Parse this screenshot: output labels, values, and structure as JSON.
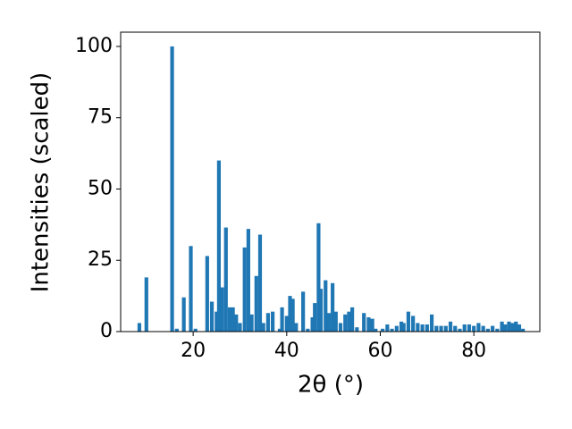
{
  "chart_data": {
    "type": "bar",
    "xlabel": "2θ (°)",
    "ylabel": "Intensities (scaled)",
    "color": "#1f77b4",
    "x": [
      8.5,
      10,
      15.5,
      16.5,
      18,
      19.5,
      20.5,
      23,
      24,
      25,
      25.5,
      26.2,
      27,
      27.8,
      28.5,
      29.2,
      30,
      31,
      31.8,
      32.5,
      33.5,
      34.3,
      35,
      36,
      37,
      38.5,
      39,
      40,
      40.7,
      41.3,
      42,
      43.5,
      44.5,
      45.5,
      46,
      46.8,
      47.3,
      48.3,
      49,
      49.8,
      50.5,
      51.5,
      52.5,
      53.3,
      54,
      55,
      56.5,
      57.5,
      58.3,
      59,
      60.5,
      61.5,
      62.5,
      63.5,
      64.5,
      65,
      66,
      67,
      68,
      69,
      70,
      71,
      72,
      73,
      74,
      75,
      76,
      77,
      78,
      79,
      80,
      81,
      82,
      83,
      84,
      85,
      86,
      86.7,
      87.5,
      88.3,
      89,
      89.7,
      90.5
    ],
    "values": [
      3,
      19,
      100,
      1,
      12,
      30,
      1,
      26.5,
      10.5,
      7,
      60,
      15.5,
      36.5,
      8.5,
      8.5,
      6,
      3,
      29.5,
      36,
      6,
      19.5,
      34,
      3,
      6.5,
      7,
      1,
      8.5,
      5.5,
      12.5,
      11.5,
      3,
      14,
      1,
      5,
      10,
      38,
      15,
      18,
      6.5,
      17,
      7,
      3,
      6,
      7,
      8.5,
      1.5,
      6.5,
      5,
      4.5,
      1,
      1,
      2.5,
      1,
      2,
      3.5,
      3,
      7,
      5.5,
      3,
      2.5,
      2.5,
      6,
      2,
      2,
      2,
      3.5,
      2,
      1,
      2.5,
      2.5,
      2,
      3,
      2,
      1,
      2,
      1,
      3.5,
      2.5,
      3.5,
      3,
      3.5,
      2.5,
      1
    ],
    "xlim": [
      4.5,
      94.1
    ],
    "ylim": [
      0,
      105
    ],
    "xticks": [
      20,
      40,
      60,
      80
    ],
    "yticks": [
      0,
      25,
      50,
      75,
      100
    ]
  }
}
